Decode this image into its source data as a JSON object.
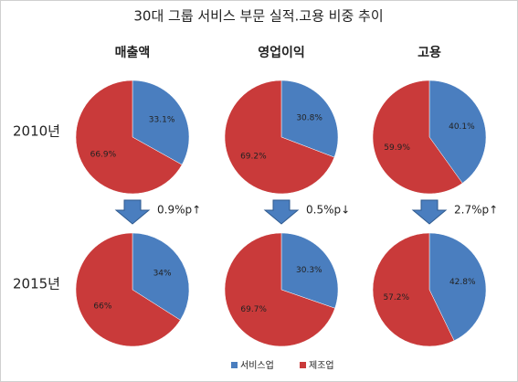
{
  "title": "30대 그룹 서비스 부문 실적.고용 비중 추이",
  "columns": [
    "매출액",
    "영업이익",
    "고용"
  ],
  "rows": [
    "2010년",
    "2015년"
  ],
  "changes": [
    "0.9%p↑",
    "0.5%p↓",
    "2.7%p↑"
  ],
  "categories": [
    "서비스업",
    "제조업"
  ],
  "colors": [
    "#4a7ebf",
    "#c93a3a"
  ],
  "chart_data": [
    {
      "type": "pie",
      "values": [
        33.1,
        66.9
      ],
      "value_labels": [
        "33.1%",
        "66.9%"
      ]
    },
    {
      "type": "pie",
      "values": [
        30.8,
        69.2
      ],
      "value_labels": [
        "30.8%",
        "69.2%"
      ]
    },
    {
      "type": "pie",
      "values": [
        40.1,
        59.9
      ],
      "value_labels": [
        "40.1%",
        "59.9%"
      ]
    },
    {
      "type": "pie",
      "values": [
        34,
        66
      ],
      "value_labels": [
        "34%",
        "66%"
      ]
    },
    {
      "type": "pie",
      "values": [
        30.3,
        69.7
      ],
      "value_labels": [
        "30.3%",
        "69.7%"
      ]
    },
    {
      "type": "pie",
      "values": [
        42.8,
        57.2
      ],
      "value_labels": [
        "42.8%",
        "57.2%"
      ]
    }
  ]
}
